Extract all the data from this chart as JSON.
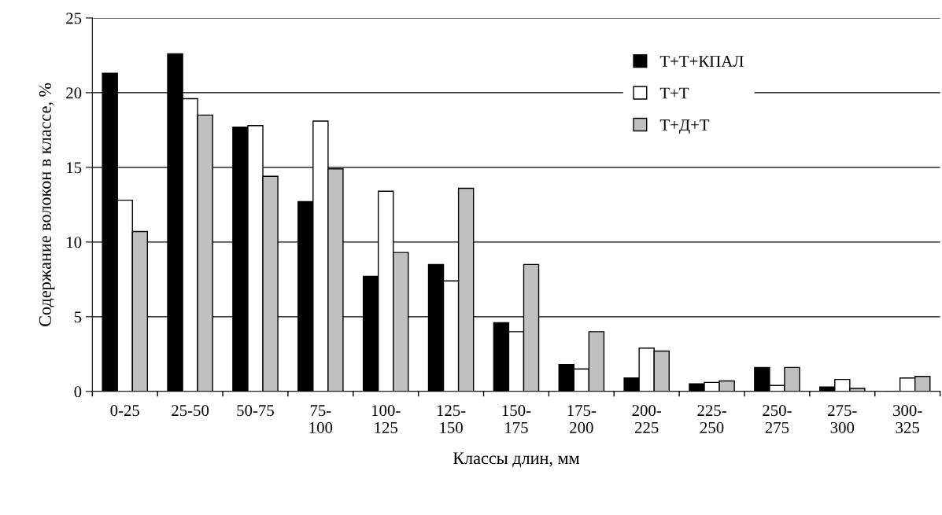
{
  "chart_data": {
    "type": "bar",
    "xlabel": "Классы длин, мм",
    "ylabel": "Содержание волокон в классе, %",
    "categories": [
      "0-25",
      "25-50",
      "50-75",
      "75-100",
      "100-125",
      "125-150",
      "150-175",
      "175-200",
      "200-225",
      "225-250",
      "250-275",
      "275-300",
      "300-325"
    ],
    "series": [
      {
        "name": "Т+Т+КПАЛ",
        "color": "#000000",
        "values": [
          21.3,
          22.6,
          17.7,
          12.7,
          7.7,
          8.5,
          4.6,
          1.8,
          0.9,
          0.5,
          1.6,
          0.3,
          0
        ]
      },
      {
        "name": "Т+Т",
        "color": "#ffffff",
        "values": [
          12.8,
          19.6,
          17.8,
          18.1,
          13.4,
          7.4,
          4.0,
          1.5,
          2.9,
          0.6,
          0.4,
          0.8,
          0.9
        ]
      },
      {
        "name": "Т+Д+Т",
        "color": "#c0c0c0",
        "values": [
          10.7,
          18.5,
          14.4,
          14.9,
          9.3,
          13.6,
          8.5,
          4.0,
          2.7,
          0.7,
          1.6,
          0.2,
          1.0
        ]
      }
    ],
    "ylim": [
      0,
      25
    ],
    "yticks": [
      0,
      5,
      10,
      15,
      20,
      25
    ],
    "grid": "y",
    "legend": "top right"
  }
}
